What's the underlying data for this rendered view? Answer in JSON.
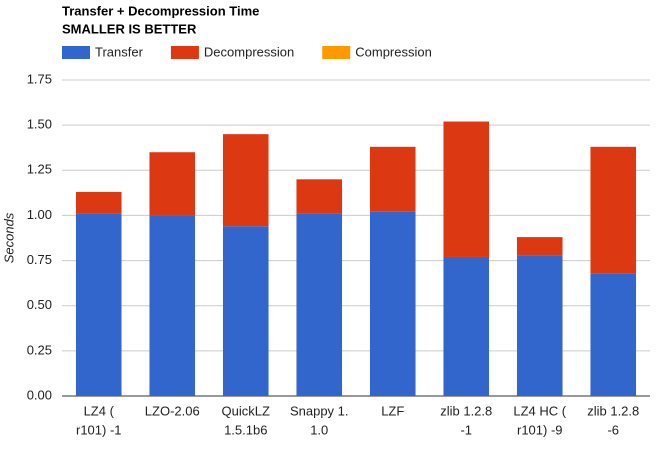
{
  "chart_data": {
    "type": "stacked-bar",
    "title": "Transfer + Decompression Time",
    "subtitle": "SMALLER IS BETTER",
    "y_label": "Seconds",
    "categories": [
      [
        "LZ4 (",
        "r101) -1"
      ],
      [
        "LZO-2.06"
      ],
      [
        "QuickLZ",
        "1.5.1b6"
      ],
      [
        "Snappy 1.",
        "1.0"
      ],
      [
        "LZF"
      ],
      [
        "zlib 1.2.8",
        "-1"
      ],
      [
        "LZ4 HC (",
        "r101) -9"
      ],
      [
        "zlib 1.2.8",
        "-6"
      ]
    ],
    "series": [
      {
        "name": "Transfer",
        "color": "#3366cc",
        "values": [
          1.01,
          1.0,
          0.94,
          1.01,
          1.02,
          0.77,
          0.78,
          0.68
        ]
      },
      {
        "name": "Decompression",
        "color": "#dc3912",
        "values": [
          0.12,
          0.35,
          0.51,
          0.19,
          0.36,
          0.75,
          0.1,
          0.7
        ]
      },
      {
        "name": "Compression",
        "color": "#ff9900",
        "values": [
          0,
          0,
          0,
          0,
          0,
          0,
          0,
          0
        ]
      }
    ],
    "ylim": [
      0,
      1.75
    ],
    "yticks": [
      {
        "value": 0,
        "label": "0.00"
      },
      {
        "value": 0.25,
        "label": "0.25"
      },
      {
        "value": 0.5,
        "label": "0.50"
      },
      {
        "value": 0.75,
        "label": "0.75"
      },
      {
        "value": 1,
        "label": "1.00"
      },
      {
        "value": 1.25,
        "label": "1.25"
      },
      {
        "value": 1.5,
        "label": "1.50"
      },
      {
        "value": 1.75,
        "label": "1.75"
      }
    ],
    "grid": true,
    "legend": "top"
  }
}
